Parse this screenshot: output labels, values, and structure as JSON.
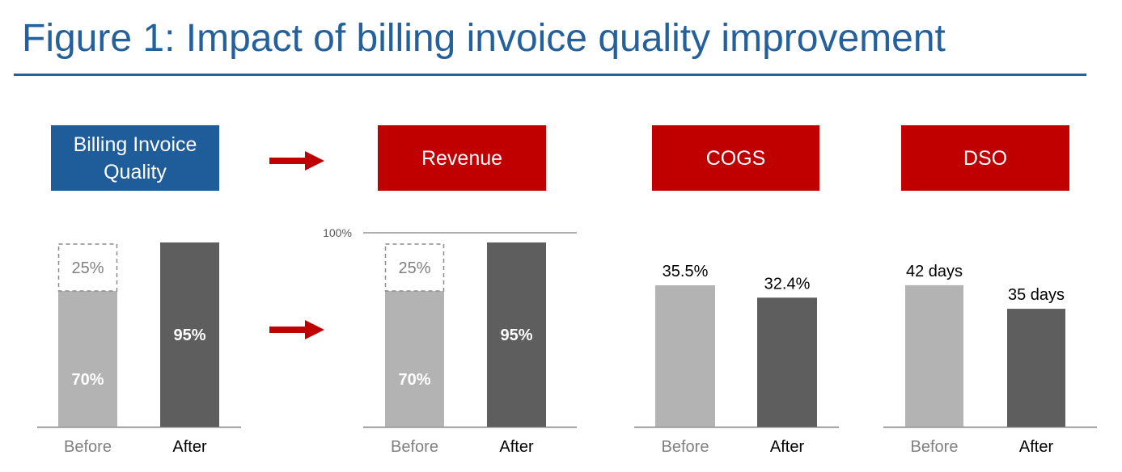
{
  "title": "Figure 1: Impact of billing invoice quality improvement",
  "colors": {
    "title": "#23609c",
    "blue_header": "#1f5c9a",
    "red_header": "#c00000",
    "before_bar": "#b3b3b3",
    "after_bar": "#5e5e5e",
    "arrow": "#c00000"
  },
  "headers": {
    "quality": "Billing Invoice Quality",
    "revenue": "Revenue",
    "cogs": "COGS",
    "dso": "DSO"
  },
  "icons": [
    "arrow-right-icon",
    "arrow-right-icon"
  ],
  "chart_data": [
    {
      "type": "bar",
      "title": "Billing Invoice Quality",
      "categories": [
        "Before",
        "After"
      ],
      "stacked": true,
      "series": [
        {
          "values": [
            70,
            95
          ],
          "labels": [
            "70%",
            "95%"
          ]
        },
        {
          "values": [
            25,
            0
          ],
          "labels": [
            "25%",
            ""
          ],
          "style": "dashed-outline"
        }
      ],
      "ylim": [
        0,
        100
      ],
      "grid": false
    },
    {
      "type": "bar",
      "title": "Revenue",
      "categories": [
        "Before",
        "After"
      ],
      "stacked": true,
      "series": [
        {
          "values": [
            70,
            95
          ],
          "labels": [
            "70%",
            "95%"
          ]
        },
        {
          "values": [
            25,
            0
          ],
          "labels": [
            "25%",
            ""
          ],
          "style": "dashed-outline"
        }
      ],
      "ylim": [
        0,
        100
      ],
      "reference_line": {
        "value": 100,
        "label": "100%"
      },
      "grid": false
    },
    {
      "type": "bar",
      "title": "COGS",
      "categories": [
        "Before",
        "After"
      ],
      "values": [
        35.5,
        32.4
      ],
      "labels": [
        "35.5%",
        "32.4%"
      ],
      "grid": false
    },
    {
      "type": "bar",
      "title": "DSO",
      "categories": [
        "Before",
        "After"
      ],
      "values": [
        42,
        35
      ],
      "labels": [
        "42 days",
        "35 days"
      ],
      "grid": false
    }
  ]
}
